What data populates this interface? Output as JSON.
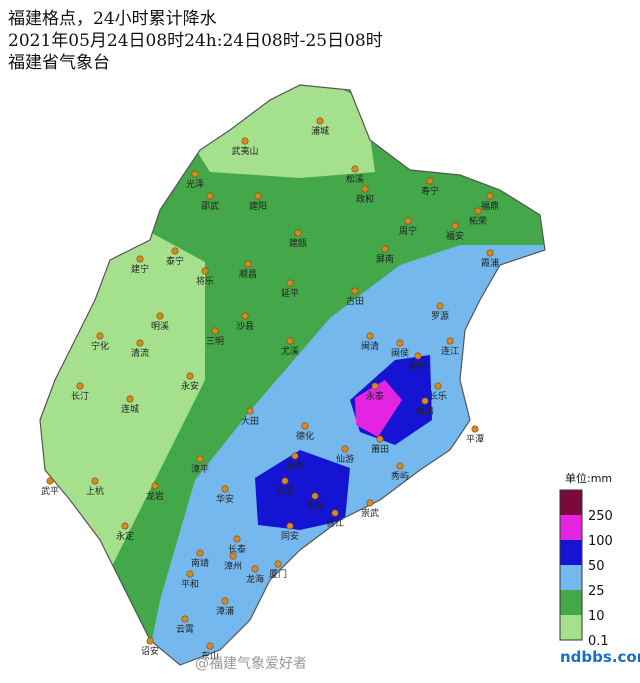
{
  "header": {
    "title": "福建格点，24小时累计降水",
    "period": "2021年05月24日08时24h:24日08时-25日08时",
    "source": "福建省气象台"
  },
  "legend": {
    "unit": "单位:mm",
    "levels": [
      250,
      100,
      50,
      25,
      10,
      0.1
    ]
  },
  "cities": [
    "浦城",
    "武夷山",
    "光泽",
    "邵武",
    "建阳",
    "松溪",
    "政和",
    "寿宁",
    "福鼎",
    "柘荣",
    "周宁",
    "福安",
    "霞浦",
    "屏南",
    "建瓯",
    "泰宁",
    "将乐",
    "顺昌",
    "建宁",
    "延平",
    "古田",
    "罗源",
    "明溪",
    "沙县",
    "三明",
    "尤溪",
    "闽清",
    "闽侯",
    "福州",
    "连江",
    "长乐",
    "宁化",
    "清流",
    "永安",
    "长汀",
    "连城",
    "大田",
    "永泰",
    "福清",
    "平潭",
    "德化",
    "仙游",
    "莆田",
    "永春",
    "秀屿",
    "漳平",
    "安溪",
    "南安",
    "晋江",
    "崇武",
    "武平",
    "上杭",
    "龙岩",
    "华安",
    "同安",
    "长泰",
    "厦门",
    "南靖",
    "漳州",
    "龙海",
    "永定",
    "平和",
    "漳浦",
    "云霄",
    "东山",
    "诏安"
  ],
  "watermark": "@福建气象爱好者",
  "logo": "ndbbs.com"
}
